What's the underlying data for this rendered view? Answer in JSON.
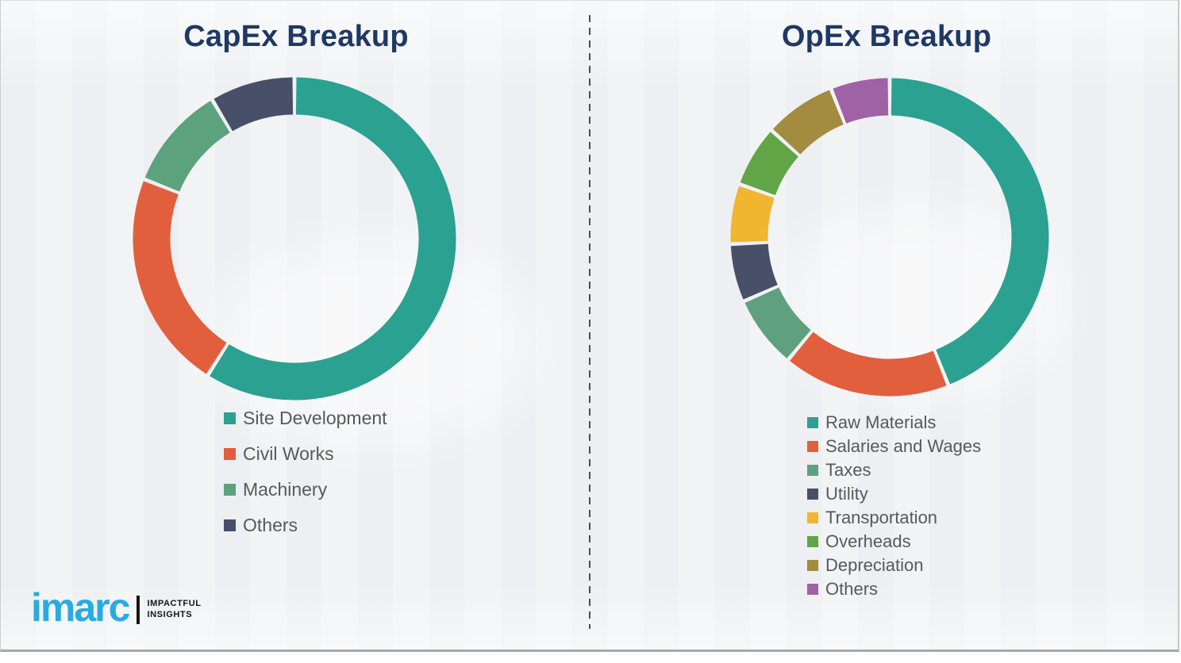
{
  "titles": {
    "capex": "CapEx Breakup",
    "opex": "OpEx Breakup",
    "color": "#1f3864"
  },
  "legend_style": {
    "text_color": "#595959"
  },
  "divider": {
    "style": "dashed-vertical",
    "color": "#4d4d4d"
  },
  "logo": {
    "brand": "imarc",
    "tagline_line1": "IMPACTFUL",
    "tagline_line2": "INSIGHTS",
    "brand_color": "#29abe2",
    "tagline_color": "#141414"
  },
  "chart_data": [
    {
      "type": "pie",
      "subtype": "donut",
      "title": "CapEx Breakup",
      "categories": [
        "Site Development",
        "Civil Works",
        "Machinery",
        "Others"
      ],
      "values": [
        59,
        22,
        10.5,
        8.5
      ],
      "unit": "% (estimated from arc angles, no data labels shown)",
      "colors": [
        "#2ba191",
        "#e25f3e",
        "#5ca27c",
        "#474f69"
      ],
      "start_angle_deg": 0,
      "direction": "clockwise",
      "legend_position": "below-left",
      "data_labels": false
    },
    {
      "type": "pie",
      "subtype": "donut",
      "title": "OpEx Breakup",
      "categories": [
        "Raw Materials",
        "Salaries and Wages",
        "Taxes",
        "Utility",
        "Transportation",
        "Overheads",
        "Depreciation",
        "Others"
      ],
      "values": [
        44,
        17,
        7.4,
        5.9,
        6.1,
        6.3,
        7.3,
        6.0
      ],
      "unit": "% (estimated from arc angles, no data labels shown)",
      "colors": [
        "#2ba191",
        "#e25f3e",
        "#5fa17e",
        "#474f69",
        "#f2b52f",
        "#61a546",
        "#a38b40",
        "#9e62a5"
      ],
      "start_angle_deg": 0,
      "direction": "clockwise",
      "legend_position": "below-left",
      "data_labels": false
    }
  ]
}
